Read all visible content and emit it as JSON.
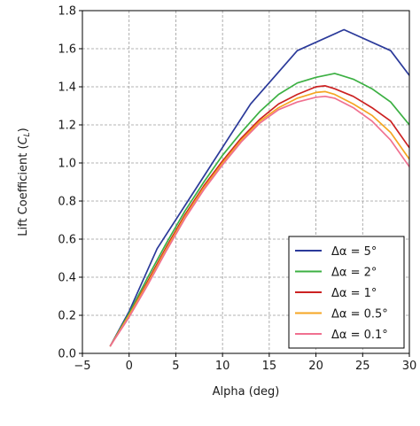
{
  "chart_data": {
    "type": "line",
    "xlabel": "Alpha (deg)",
    "ylabel_text": "Lift Coefficient (",
    "ylabel_symbol": "C",
    "ylabel_subscript": "L",
    "ylabel_close": ")",
    "xlim": [
      -5,
      30
    ],
    "ylim": [
      0.0,
      1.8
    ],
    "xticks": [
      -5,
      0,
      5,
      10,
      15,
      20,
      25,
      30
    ],
    "xtick_labels": [
      "−5",
      "0",
      "5",
      "10",
      "15",
      "20",
      "25",
      "30"
    ],
    "yticks": [
      0.0,
      0.2,
      0.4,
      0.6,
      0.8,
      1.0,
      1.2,
      1.4,
      1.6,
      1.8
    ],
    "ytick_labels": [
      "0.0",
      "0.2",
      "0.4",
      "0.6",
      "0.8",
      "1.0",
      "1.2",
      "1.4",
      "1.6",
      "1.8"
    ],
    "grid": true,
    "grid_style": "dashed",
    "legend_position": "lower-right",
    "series": [
      {
        "name": "Δα = 5°",
        "color": "#2b3a9a",
        "x": [
          -2,
          0,
          3,
          8,
          13,
          18,
          23,
          28,
          30
        ],
        "y": [
          0.04,
          0.22,
          0.55,
          0.93,
          1.31,
          1.59,
          1.7,
          1.59,
          1.46
        ]
      },
      {
        "name": "Δα = 2°",
        "color": "#3cb043",
        "x": [
          -2,
          0,
          2,
          4,
          6,
          8,
          10,
          12,
          14,
          16,
          18,
          20,
          22,
          24,
          26,
          28,
          30
        ],
        "y": [
          0.04,
          0.21,
          0.4,
          0.58,
          0.75,
          0.9,
          1.04,
          1.16,
          1.27,
          1.36,
          1.42,
          1.45,
          1.47,
          1.44,
          1.39,
          1.32,
          1.2
        ]
      },
      {
        "name": "Δα = 1°",
        "color": "#cc2222",
        "x": [
          -2,
          0,
          2,
          4,
          6,
          8,
          10,
          12,
          14,
          16,
          18,
          20,
          21,
          22,
          24,
          26,
          28,
          30
        ],
        "y": [
          0.04,
          0.2,
          0.38,
          0.56,
          0.73,
          0.88,
          1.01,
          1.13,
          1.23,
          1.31,
          1.36,
          1.4,
          1.405,
          1.39,
          1.35,
          1.29,
          1.22,
          1.08
        ]
      },
      {
        "name": "Δα = 0.5°",
        "color": "#f5a623",
        "x": [
          -2,
          0,
          2,
          4,
          6,
          8,
          10,
          12,
          14,
          16,
          18,
          20,
          21,
          22,
          24,
          26,
          28,
          30
        ],
        "y": [
          0.04,
          0.2,
          0.37,
          0.55,
          0.72,
          0.87,
          1.0,
          1.12,
          1.22,
          1.29,
          1.34,
          1.37,
          1.375,
          1.36,
          1.31,
          1.25,
          1.16,
          1.02
        ]
      },
      {
        "name": "Δα = 0.1°",
        "color": "#f07090",
        "x": [
          -2,
          0,
          2,
          4,
          6,
          8,
          10,
          12,
          14,
          16,
          18,
          20,
          21,
          22,
          24,
          26,
          28,
          30
        ],
        "y": [
          0.04,
          0.19,
          0.36,
          0.54,
          0.71,
          0.86,
          0.99,
          1.11,
          1.21,
          1.28,
          1.32,
          1.345,
          1.35,
          1.34,
          1.29,
          1.22,
          1.12,
          0.98
        ]
      }
    ]
  }
}
